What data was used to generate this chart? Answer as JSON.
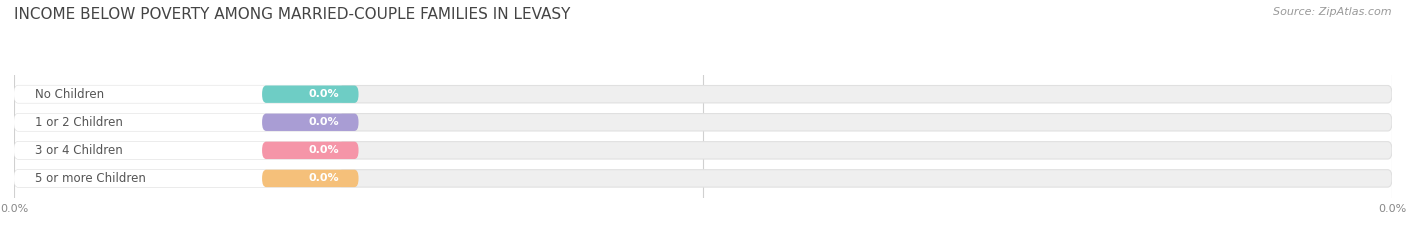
{
  "title": "INCOME BELOW POVERTY AMONG MARRIED-COUPLE FAMILIES IN LEVASY",
  "source_text": "Source: ZipAtlas.com",
  "categories": [
    "No Children",
    "1 or 2 Children",
    "3 or 4 Children",
    "5 or more Children"
  ],
  "values": [
    0.0,
    0.0,
    0.0,
    0.0
  ],
  "bar_colors": [
    "#6ecdc5",
    "#a99dd4",
    "#f595a8",
    "#f5c07a"
  ],
  "title_fontsize": 11,
  "label_fontsize": 8.5,
  "value_fontsize": 8,
  "tick_fontsize": 8,
  "source_fontsize": 8,
  "xlim": [
    0,
    100
  ],
  "bg_color": "#ffffff",
  "grid_color": "#d0d0d0",
  "bar_bg_color": "#efefef",
  "bar_bg_edge_color": "#e0e0e0"
}
